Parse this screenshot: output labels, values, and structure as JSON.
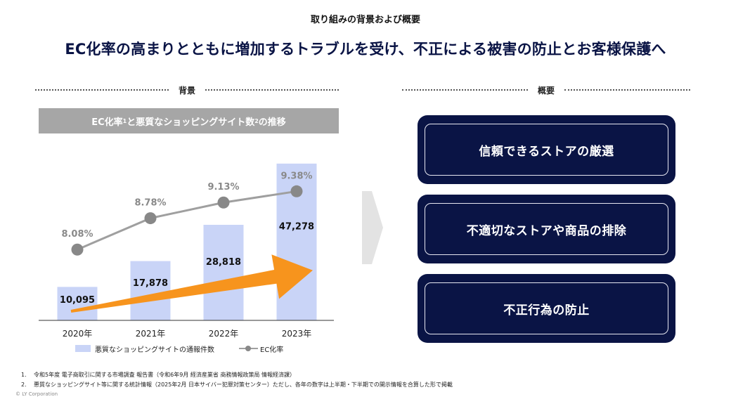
{
  "header": {
    "subtitle": "取り組みの背景および概要",
    "headline": "EC化率の高まりとともに増加するトラブルを受け、不正による被害の防止とお客様保護へ"
  },
  "sections": {
    "left_label": "背景",
    "right_label": "概要"
  },
  "chart_box": {
    "title_pre": "EC化率",
    "sup1": "1",
    "title_mid": " と悪質なショッピングサイト数",
    "sup2": "2",
    "title_post": " の推移"
  },
  "chart_data": {
    "type": "bar",
    "categories": [
      "2020年",
      "2021年",
      "2022年",
      "2023年"
    ],
    "series": [
      {
        "name": "悪質なショッピングサイトの通報件数",
        "type": "bar",
        "values": [
          10095,
          17878,
          28818,
          47278
        ],
        "labels": [
          "10,095",
          "17,878",
          "28,818",
          "47,278"
        ]
      },
      {
        "name": "EC化率",
        "type": "line",
        "values": [
          8.08,
          8.78,
          9.13,
          9.38
        ],
        "labels": [
          "8.08%",
          "8.78%",
          "9.13%",
          "9.38%"
        ]
      }
    ],
    "ylim_bar": [
      0,
      50000
    ],
    "ylim_line": [
      6.5,
      10.2
    ],
    "legend": "bottom",
    "grid": false,
    "colors": {
      "bar": "#c9d4f7",
      "line": "#9f9f9f",
      "marker": "#888888",
      "arrow": "#f7941d"
    }
  },
  "summary_items": [
    {
      "label": "信頼できるストアの厳選"
    },
    {
      "label": "不適切なストアや商品の排除"
    },
    {
      "label": "不正行為の防止"
    }
  ],
  "footnotes": [
    {
      "num": "1.",
      "text": "令和5年度 電子商取引に関する市場調査 報告書（令和6年9月 経済産業省 商務情報政策局 情報経済課）"
    },
    {
      "num": "2.",
      "text": "悪質なショッピングサイト等に関する統計情報（2025年2月 日本サイバー犯罪対策センター）ただし、各年の数字は上半期・下半期での開示情報を合算した形で掲載"
    }
  ],
  "copyright": "© LY Corporation",
  "colors": {
    "navy": "#0a1445",
    "gray_band": "#a6a6a6",
    "chevron": "#e3e3e3"
  }
}
